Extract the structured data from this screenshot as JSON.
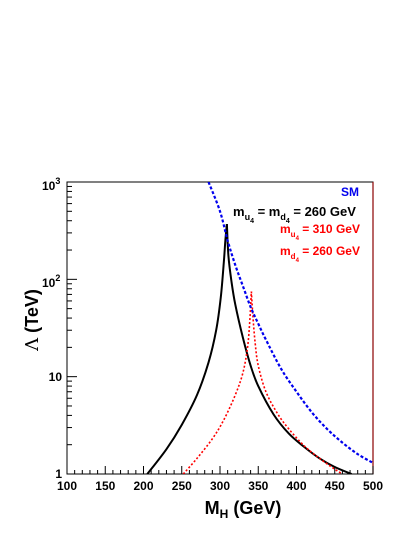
{
  "chart_data": {
    "type": "line",
    "xlabel_main": "M",
    "xlabel_sub": "H",
    "xlabel_unit": " (GeV)",
    "ylabel_symbol": "Λ",
    "ylabel_unit": " (TeV)",
    "xlim": [
      100,
      500
    ],
    "ylim": [
      1,
      1000
    ],
    "yscale": "log",
    "grid": false,
    "legend_position": "top-right",
    "x_ticks": [
      "100",
      "150",
      "200",
      "250",
      "300",
      "350",
      "400",
      "450",
      "500"
    ],
    "y_ticks": {
      "one": "1",
      "ten": "10",
      "hundred_base": "10",
      "hundred_exp": "2",
      "thousand_base": "10",
      "thousand_exp": "3"
    },
    "colors": {
      "black": "#000000",
      "red": "#ff0000",
      "blue": "#0000ee",
      "frame_right": "#8b0000"
    },
    "legend": {
      "sm": "SM",
      "black": {
        "m": "m",
        "sub1": "u",
        "subsub1": "4",
        "eq": " = m",
        "sub2": "d",
        "subsub2": "4",
        "value": " = 260 GeV"
      },
      "red1": {
        "m": "m",
        "sub": "u",
        "subsub": "4",
        "value": " = 310 GeV"
      },
      "red2": {
        "m": "m",
        "sub": "d",
        "subsub": "4",
        "value": " = 260 GeV"
      }
    },
    "series": [
      {
        "id": "black-left",
        "color": "#000000",
        "style": "solid",
        "points": [
          [
            205,
            1
          ],
          [
            230,
            1.8
          ],
          [
            250,
            3.2
          ],
          [
            270,
            6.5
          ],
          [
            285,
            14
          ],
          [
            295,
            30
          ],
          [
            301,
            65
          ],
          [
            305,
            150
          ],
          [
            307,
            250
          ],
          [
            309,
            370
          ]
        ]
      },
      {
        "id": "black-right",
        "color": "#000000",
        "style": "solid",
        "points": [
          [
            309,
            370
          ],
          [
            311,
            175
          ],
          [
            315,
            95
          ],
          [
            320,
            55
          ],
          [
            330,
            25
          ],
          [
            340,
            13
          ],
          [
            350,
            8
          ],
          [
            370,
            4.1
          ],
          [
            390,
            2.6
          ],
          [
            410,
            1.9
          ],
          [
            430,
            1.45
          ],
          [
            450,
            1.18
          ],
          [
            472,
            1
          ]
        ]
      },
      {
        "id": "red-left",
        "color": "#ff0000",
        "style": "dotted",
        "points": [
          [
            252,
            1
          ],
          [
            270,
            1.45
          ],
          [
            290,
            2.3
          ],
          [
            305,
            3.6
          ],
          [
            320,
            6.5
          ],
          [
            330,
            11
          ],
          [
            336,
            20
          ],
          [
            339,
            38
          ],
          [
            341,
            75
          ]
        ]
      },
      {
        "id": "red-right",
        "color": "#ff0000",
        "style": "dotted",
        "points": [
          [
            341,
            75
          ],
          [
            343,
            42
          ],
          [
            346,
            22
          ],
          [
            350,
            13
          ],
          [
            360,
            7
          ],
          [
            375,
            4.2
          ],
          [
            390,
            2.9
          ],
          [
            410,
            1.95
          ],
          [
            430,
            1.45
          ],
          [
            450,
            1.12
          ],
          [
            460,
            1
          ]
        ]
      },
      {
        "id": "sm",
        "color": "#0000ee",
        "style": "dashed",
        "points": [
          [
            285,
            1000
          ],
          [
            300,
            500
          ],
          [
            310,
            250
          ],
          [
            320,
            140
          ],
          [
            330,
            85
          ],
          [
            340,
            52
          ],
          [
            350,
            35
          ],
          [
            360,
            24
          ],
          [
            380,
            12
          ],
          [
            400,
            7
          ],
          [
            420,
            4.3
          ],
          [
            440,
            2.9
          ],
          [
            460,
            2.1
          ],
          [
            480,
            1.6
          ],
          [
            500,
            1.3
          ]
        ]
      }
    ]
  }
}
